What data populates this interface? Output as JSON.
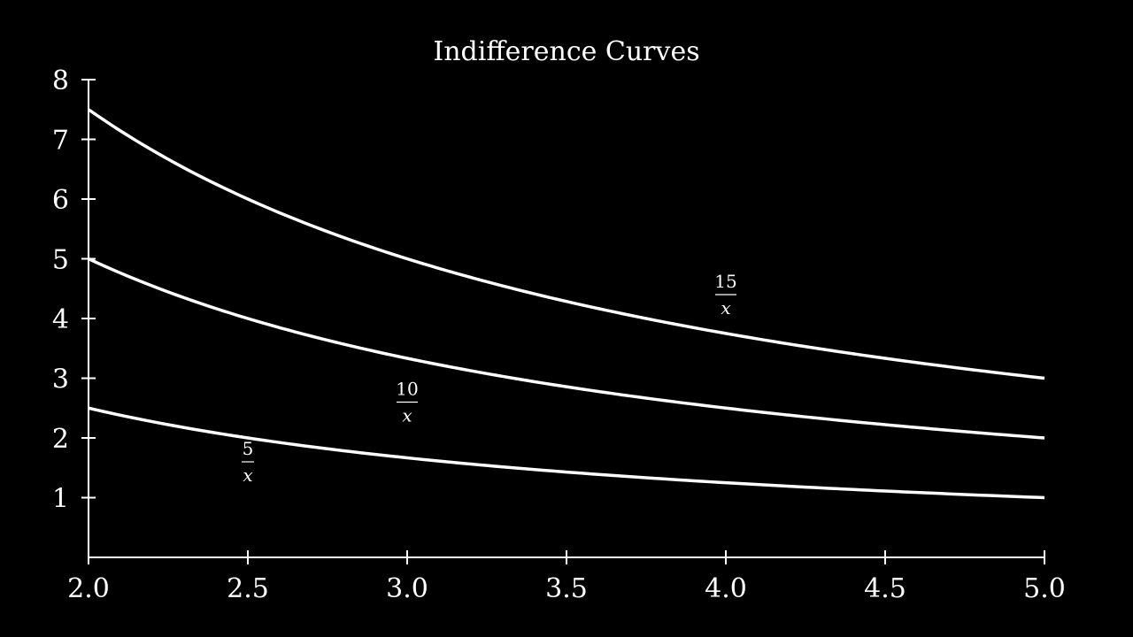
{
  "chart_data": {
    "type": "line",
    "title": "Indifference Curves",
    "xlabel": "",
    "ylabel": "",
    "xlim": [
      2.0,
      5.0
    ],
    "ylim": [
      0,
      8
    ],
    "x_ticks": [
      2.0,
      2.5,
      3.0,
      3.5,
      4.0,
      4.5,
      5.0
    ],
    "x_tick_labels": [
      "2.0",
      "2.5",
      "3.0",
      "3.5",
      "4.0",
      "4.5",
      "5.0"
    ],
    "y_ticks": [
      1,
      2,
      3,
      4,
      5,
      6,
      7,
      8
    ],
    "y_tick_labels": [
      "1",
      "2",
      "3",
      "4",
      "5",
      "6",
      "7",
      "8"
    ],
    "grid": false,
    "colors": {
      "background": "#000000",
      "foreground": "#ffffff"
    },
    "series": [
      {
        "label_num": "5",
        "label_den": "x",
        "label_at": [
          2.5,
          1.6
        ],
        "x": [
          2.0,
          2.25,
          2.5,
          2.75,
          3.0,
          3.25,
          3.5,
          3.75,
          4.0,
          4.25,
          4.5,
          4.75,
          5.0
        ],
        "values": [
          2.5,
          2.22,
          2.0,
          1.82,
          1.67,
          1.54,
          1.43,
          1.33,
          1.25,
          1.18,
          1.11,
          1.05,
          1.0
        ]
      },
      {
        "label_num": "10",
        "label_den": "x",
        "label_at": [
          3.0,
          2.6
        ],
        "x": [
          2.0,
          2.25,
          2.5,
          2.75,
          3.0,
          3.25,
          3.5,
          3.75,
          4.0,
          4.25,
          4.5,
          4.75,
          5.0
        ],
        "values": [
          5.0,
          4.44,
          4.0,
          3.64,
          3.33,
          3.08,
          2.86,
          2.67,
          2.5,
          2.35,
          2.22,
          2.11,
          2.0
        ]
      },
      {
        "label_num": "15",
        "label_den": "x",
        "label_at": [
          4.0,
          4.4
        ],
        "x": [
          2.0,
          2.25,
          2.5,
          2.75,
          3.0,
          3.25,
          3.5,
          3.75,
          4.0,
          4.25,
          4.5,
          4.75,
          5.0
        ],
        "values": [
          7.5,
          6.67,
          6.0,
          5.45,
          5.0,
          4.62,
          4.29,
          4.0,
          3.75,
          3.53,
          3.33,
          3.16,
          3.0
        ]
      }
    ]
  }
}
